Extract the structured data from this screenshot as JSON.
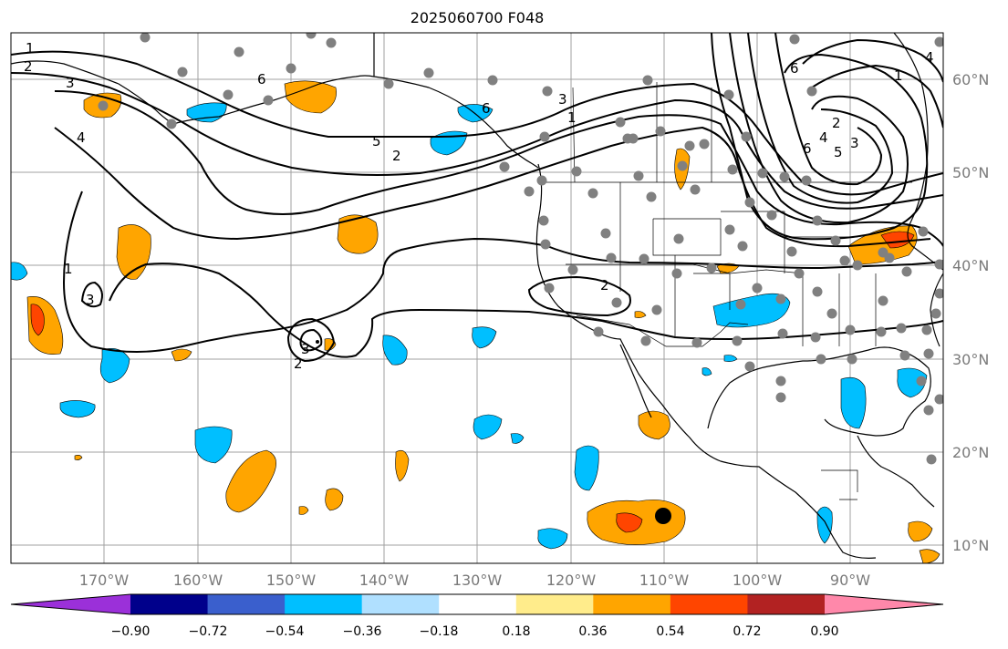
{
  "title": "2025060700 F048",
  "map": {
    "lon_ticks": [
      "170°W",
      "160°W",
      "150°W",
      "140°W",
      "130°W",
      "120°W",
      "110°W",
      "100°W",
      "90°W"
    ],
    "lat_ticks": [
      "10°N",
      "20°N",
      "30°N",
      "40°N",
      "50°N",
      "60°N"
    ],
    "contour_labels": [
      "1",
      "2",
      "3",
      "4",
      "5",
      "6"
    ],
    "point_marker_color": "#808080",
    "center_marker_color": "#000000"
  },
  "colorbar": {
    "ticks": [
      "−0.90",
      "−0.72",
      "−0.54",
      "−0.36",
      "−0.18",
      "0.18",
      "0.36",
      "0.54",
      "0.72",
      "0.90"
    ],
    "colors": [
      "#9b30d9",
      "#00008b",
      "#3a5fcd",
      "#00bfff",
      "#b0e0ff",
      "#ffffff",
      "#ffec8b",
      "#ffa500",
      "#ff4500",
      "#b22222",
      "#ff88aa"
    ]
  }
}
